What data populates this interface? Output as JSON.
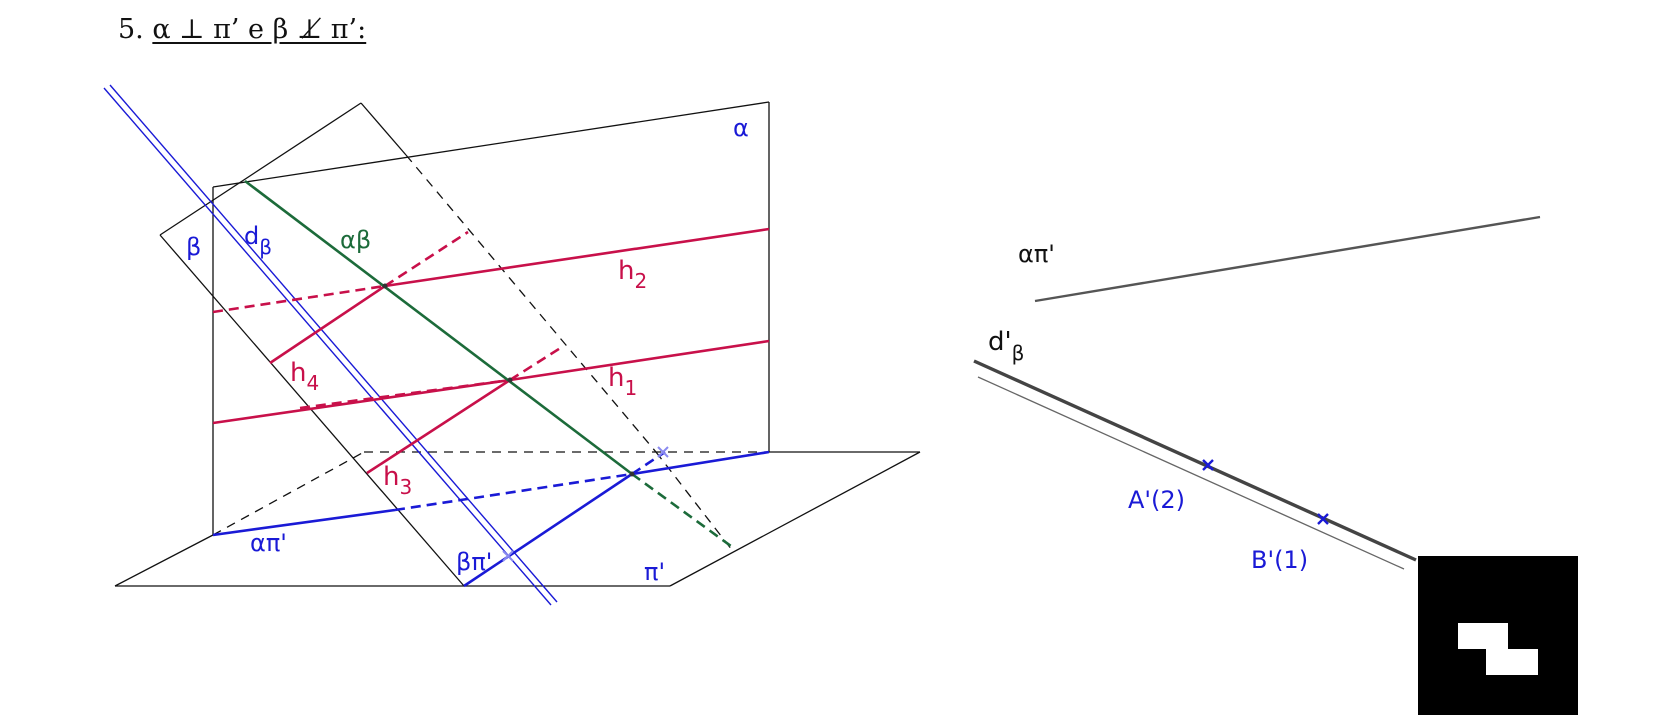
{
  "title": {
    "number": "5.",
    "statement": "α ⊥ π’ e β ⊥̸ π’:"
  },
  "labels": {
    "alpha": "α",
    "beta": "β",
    "d_beta_main": "d",
    "d_beta_sub": "β",
    "alpha_beta": "αβ",
    "h_main": "h",
    "h1_sub": "1",
    "h2_sub": "2",
    "h3_sub": "3",
    "h4_sub": "4",
    "alpha_pi": "απ'",
    "beta_pi": "βπ'",
    "pi": "π'"
  },
  "projection": {
    "alpha_pi": "απ'",
    "d_prime_main": "d'",
    "d_prime_sub": "β",
    "point_a": "A'(2)",
    "point_b": "B'(1)"
  },
  "colors": {
    "black": "#111111",
    "blue": "#1a1ad6",
    "light_blue": "#8a8af0",
    "red": "#c8104a",
    "green": "#1c6b3a",
    "gray": "#555555"
  }
}
